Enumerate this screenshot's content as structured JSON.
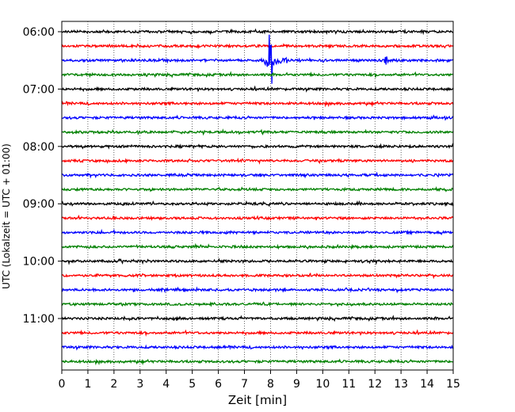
{
  "chart_data": {
    "type": "line",
    "title": "",
    "xlabel": "Zeit  [min]",
    "ylabel": "UTC (Lokalzeit = UTC + 01:00)",
    "xlim": [
      0,
      15
    ],
    "x_ticks": [
      "0",
      "1",
      "2",
      "3",
      "4",
      "5",
      "6",
      "7",
      "8",
      "9",
      "10",
      "11",
      "12",
      "13",
      "14",
      "15"
    ],
    "y_tick_labels": [
      "06:00",
      "07:00",
      "08:00",
      "09:00",
      "10:00",
      "11:00"
    ],
    "trace_interval_min": 15,
    "trace_colors": [
      "#000000",
      "#ff0000",
      "#0000ff",
      "#008000"
    ],
    "traces": [
      {
        "start": "06:00",
        "color": "#000000"
      },
      {
        "start": "06:15",
        "color": "#ff0000"
      },
      {
        "start": "06:30",
        "color": "#0000ff"
      },
      {
        "start": "06:45",
        "color": "#008000"
      },
      {
        "start": "07:00",
        "color": "#000000"
      },
      {
        "start": "07:15",
        "color": "#ff0000"
      },
      {
        "start": "07:30",
        "color": "#0000ff"
      },
      {
        "start": "07:45",
        "color": "#008000"
      },
      {
        "start": "08:00",
        "color": "#000000"
      },
      {
        "start": "08:15",
        "color": "#ff0000"
      },
      {
        "start": "08:30",
        "color": "#0000ff"
      },
      {
        "start": "08:45",
        "color": "#008000"
      },
      {
        "start": "09:00",
        "color": "#000000"
      },
      {
        "start": "09:15",
        "color": "#ff0000"
      },
      {
        "start": "09:30",
        "color": "#0000ff"
      },
      {
        "start": "09:45",
        "color": "#008000"
      },
      {
        "start": "10:00",
        "color": "#000000"
      },
      {
        "start": "10:15",
        "color": "#ff0000"
      },
      {
        "start": "10:30",
        "color": "#0000ff"
      },
      {
        "start": "10:45",
        "color": "#008000"
      },
      {
        "start": "11:00",
        "color": "#000000"
      },
      {
        "start": "11:15",
        "color": "#ff0000"
      },
      {
        "start": "11:30",
        "color": "#0000ff"
      },
      {
        "start": "11:45",
        "color": "#008000"
      }
    ],
    "events": [
      {
        "trace": "06:30",
        "time_min": 7.95,
        "amplitude": "large"
      },
      {
        "trace": "06:30",
        "time_min": 12.4,
        "amplitude": "small"
      }
    ],
    "grid": "vertical-dotted"
  }
}
